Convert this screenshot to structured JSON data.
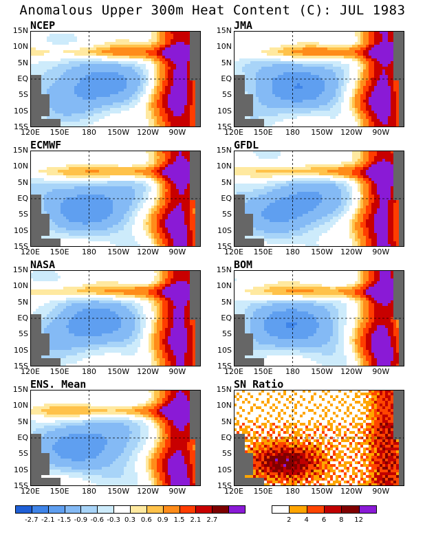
{
  "title": "Anomalous Upper 300m Heat Content (C): JUL 1983",
  "chart_data": {
    "type": "heatmap",
    "y_ticks": [
      "15N",
      "10N",
      "5N",
      "EQ",
      "5S",
      "10S",
      "15S"
    ],
    "x_ticks": [
      "120E",
      "150E",
      "180",
      "150W",
      "120W",
      "90W"
    ],
    "panels": [
      {
        "label": "NCEP",
        "kind": "anomaly"
      },
      {
        "label": "JMA",
        "kind": "anomaly"
      },
      {
        "label": "ECMWF",
        "kind": "anomaly"
      },
      {
        "label": "GFDL",
        "kind": "anomaly"
      },
      {
        "label": "NASA",
        "kind": "anomaly"
      },
      {
        "label": "BOM",
        "kind": "anomaly"
      },
      {
        "label": "ENS. Mean",
        "kind": "anomaly"
      },
      {
        "label": "SN Ratio",
        "kind": "snr"
      }
    ],
    "colorbar_anomaly": {
      "labels": [
        "-2.7",
        "-2.1",
        "-1.5",
        "-0.9",
        "-0.6",
        "-0.3",
        "0.3",
        "0.6",
        "0.9",
        "1.5",
        "2.1",
        "2.7"
      ],
      "colors": [
        "#1f5fd6",
        "#3f84e8",
        "#5f9ff0",
        "#84baf5",
        "#a8d4f8",
        "#cdebfb",
        "#ffffff",
        "#ffe9a0",
        "#ffc24a",
        "#ff8c1a",
        "#ff3d00",
        "#c80000",
        "#7d0000",
        "#8a1ad6"
      ]
    },
    "colorbar_snr": {
      "labels": [
        "2",
        "4",
        "6",
        "8",
        "12"
      ],
      "colors": [
        "#ffffff",
        "#ffa500",
        "#ff4500",
        "#c00000",
        "#800000",
        "#8a1ad6"
      ]
    }
  }
}
